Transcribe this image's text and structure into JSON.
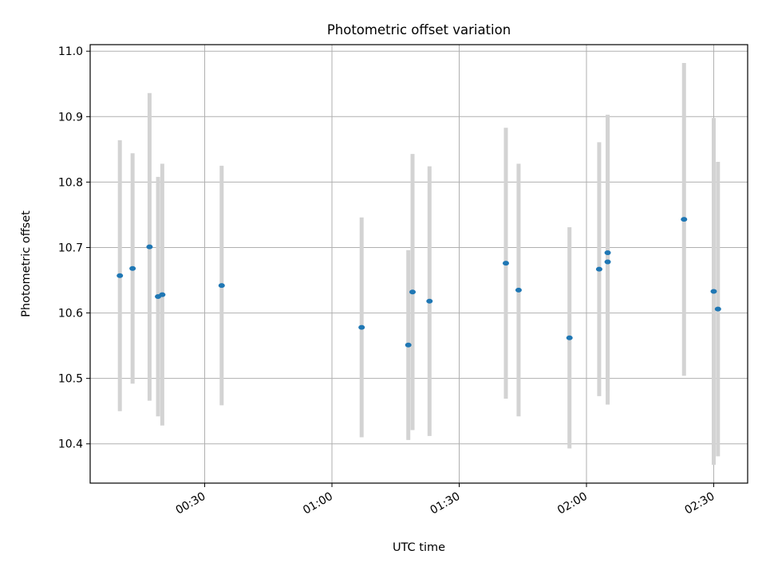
{
  "chart_data": {
    "type": "scatter",
    "title": "Photometric offset variation",
    "xlabel": "UTC time",
    "ylabel": "Photometric offset",
    "x_unit": "minutes",
    "xlim": [
      "00:03",
      "02:38"
    ],
    "ylim": [
      10.34,
      11.01
    ],
    "xticks": [
      "00:30",
      "01:00",
      "01:30",
      "02:00",
      "02:30"
    ],
    "yticks": [
      "10.4",
      "10.5",
      "10.6",
      "10.7",
      "10.8",
      "10.9",
      "11.0"
    ],
    "grid": true,
    "colors": {
      "point": "#1f77b4",
      "errorbar": "#d3d3d3",
      "grid": "#b0b0b0"
    },
    "points": [
      {
        "x": "00:10",
        "y": 10.657,
        "err": 0.207
      },
      {
        "x": "00:13",
        "y": 10.668,
        "err": 0.176
      },
      {
        "x": "00:17",
        "y": 10.701,
        "err": 0.235
      },
      {
        "x": "00:19",
        "y": 10.625,
        "err": 0.183
      },
      {
        "x": "00:20",
        "y": 10.628,
        "err": 0.2
      },
      {
        "x": "00:34",
        "y": 10.642,
        "err": 0.183
      },
      {
        "x": "01:07",
        "y": 10.578,
        "err": 0.168
      },
      {
        "x": "01:18",
        "y": 10.551,
        "err": 0.145
      },
      {
        "x": "01:19",
        "y": 10.632,
        "err": 0.211
      },
      {
        "x": "01:23",
        "y": 10.618,
        "err": 0.206
      },
      {
        "x": "01:41",
        "y": 10.676,
        "err": 0.207
      },
      {
        "x": "01:44",
        "y": 10.635,
        "err": 0.193
      },
      {
        "x": "01:56",
        "y": 10.562,
        "err": 0.169
      },
      {
        "x": "02:03",
        "y": 10.667,
        "err": 0.194
      },
      {
        "x": "02:05",
        "y": 10.692,
        "err": 0.211
      },
      {
        "x": "02:05",
        "y": 10.678,
        "err": 0.218
      },
      {
        "x": "02:23",
        "y": 10.743,
        "err": 0.239
      },
      {
        "x": "02:30",
        "y": 10.633,
        "err": 0.265
      },
      {
        "x": "02:31",
        "y": 10.606,
        "err": 0.225
      }
    ]
  }
}
